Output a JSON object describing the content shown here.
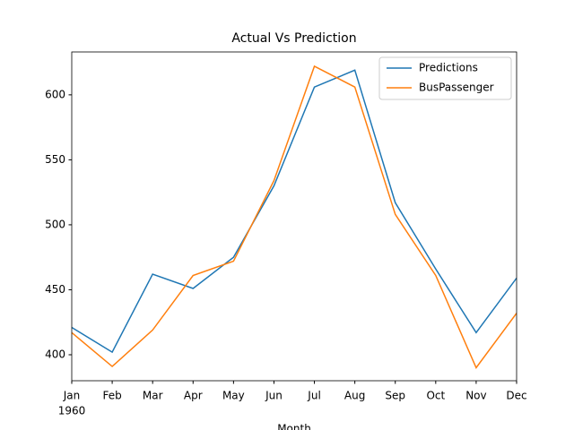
{
  "chart_data": {
    "type": "line",
    "title": "Actual Vs Prediction",
    "x_label": "Month",
    "x_year_label": "1960",
    "categories": [
      "Jan",
      "Feb",
      "Mar",
      "Apr",
      "May",
      "Jun",
      "Jul",
      "Aug",
      "Sep",
      "Oct",
      "Nov",
      "Dec"
    ],
    "series": [
      {
        "name": "Predictions",
        "color": "#1f77b4",
        "values": [
          421,
          402,
          462,
          451,
          475,
          530,
          606,
          619,
          517,
          466,
          417,
          459
        ]
      },
      {
        "name": "BusPassenger",
        "color": "#ff7f0e",
        "values": [
          417,
          391,
          419,
          461,
          472,
          534,
          622,
          606,
          508,
          461,
          390,
          432
        ]
      }
    ],
    "ylim": [
      380,
      633
    ],
    "yticks": [
      400,
      450,
      500,
      550,
      600
    ],
    "grid": false,
    "legend": "upper right"
  }
}
